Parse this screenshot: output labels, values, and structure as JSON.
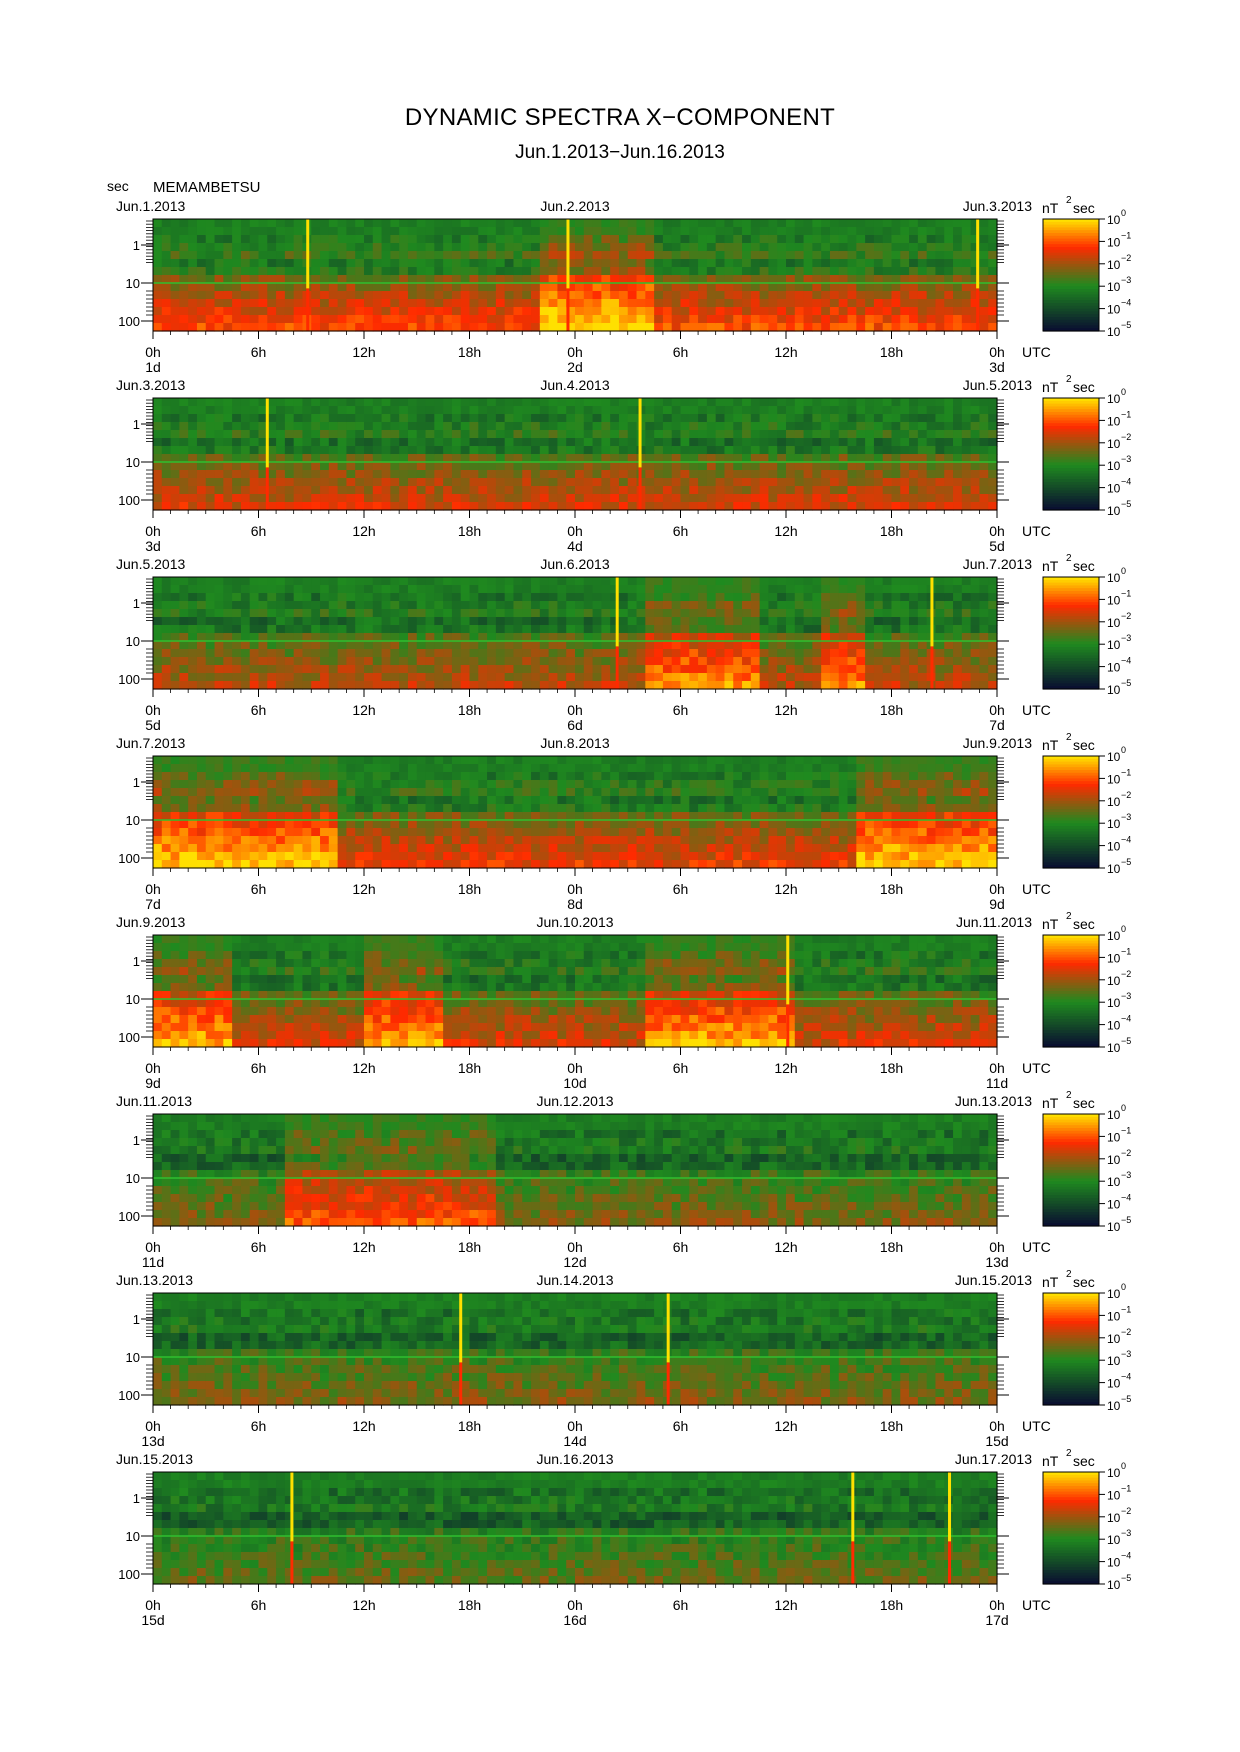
{
  "title": "DYNAMIC SPECTRA X−COMPONENT",
  "subtitle": "Jun.1.2013−Jun.16.2013",
  "y_unit": "sec",
  "station": "MEMAMBETSU",
  "time_unit": "UTC",
  "colorbar_unit": {
    "base": "nT",
    "sup": "2",
    "tail": "sec"
  },
  "colors": {
    "low": "#0a1030",
    "mid": "#1f8a1f",
    "high": "#ff2a00",
    "peak": "#ffe000"
  },
  "chart_data": {
    "type": "heatmap",
    "x_tick_labels": [
      "0h",
      "6h",
      "12h",
      "18h",
      "0h",
      "6h",
      "12h",
      "18h",
      "0h"
    ],
    "y_tick_labels": [
      "1",
      "10",
      "100"
    ],
    "y_scale": "log",
    "y_axis_label": "sec",
    "colorbar": {
      "label": "nT²sec",
      "scale": "log",
      "ticks": [
        "10^0",
        "10^-1",
        "10^-2",
        "10^-3",
        "10^-4",
        "10^-5"
      ],
      "ticks_display": [
        {
          "b": "10",
          "e": "0"
        },
        {
          "b": "10",
          "e": "−1"
        },
        {
          "b": "10",
          "e": "−2"
        },
        {
          "b": "10",
          "e": "−3"
        },
        {
          "b": "10",
          "e": "−4"
        },
        {
          "b": "10",
          "e": "−5"
        }
      ]
    },
    "panels": [
      {
        "date_left": "Jun.1.2013",
        "date_mid": "Jun.2.2013",
        "date_right": "Jun.3.2013",
        "day_left": "1d",
        "day_mid": "2d",
        "day_right": "3d",
        "spikes": [
          8.8,
          23.6,
          46.9
        ],
        "active": [
          [
            22,
            28
          ]
        ],
        "base": 0.55
      },
      {
        "date_left": "Jun.3.2013",
        "date_mid": "Jun.4.2013",
        "date_right": "Jun.5.2013",
        "day_left": "3d",
        "day_mid": "4d",
        "day_right": "5d",
        "spikes": [
          6.5,
          27.7
        ],
        "active": [],
        "base": 0.45
      },
      {
        "date_left": "Jun.5.2013",
        "date_mid": "Jun.6.2013",
        "date_right": "Jun.7.2013",
        "day_left": "5d",
        "day_mid": "6d",
        "day_right": "7d",
        "spikes": [
          26.4,
          44.3
        ],
        "active": [
          [
            28,
            34
          ],
          [
            38,
            40
          ]
        ],
        "base": 0.4
      },
      {
        "date_left": "Jun.7.2013",
        "date_mid": "Jun.8.2013",
        "date_right": "Jun.9.2013",
        "day_left": "7d",
        "day_mid": "8d",
        "day_right": "9d",
        "spikes": [],
        "active": [
          [
            0,
            10
          ],
          [
            40,
            48
          ]
        ],
        "base": 0.5
      },
      {
        "date_left": "Jun.9.2013",
        "date_mid": "Jun.10.2013",
        "date_right": "Jun.11.2013",
        "day_left": "9d",
        "day_mid": "10d",
        "day_right": "11d",
        "spikes": [
          36.1
        ],
        "active": [
          [
            0,
            4
          ],
          [
            12,
            16
          ],
          [
            28,
            36
          ]
        ],
        "base": 0.45
      },
      {
        "date_left": "Jun.11.2013",
        "date_mid": "Jun.12.2013",
        "date_right": "Jun.13.2013",
        "day_left": "11d",
        "day_mid": "12d",
        "day_right": "13d",
        "spikes": [],
        "active": [
          [
            7.5,
            19
          ]
        ],
        "base": 0.3
      },
      {
        "date_left": "Jun.13.2013",
        "date_mid": "Jun.14.2013",
        "date_right": "Jun.15.2013",
        "day_left": "13d",
        "day_mid": "14d",
        "day_right": "15d",
        "spikes": [
          17.5,
          29.3
        ],
        "active": [],
        "base": 0.3
      },
      {
        "date_left": "Jun.15.2013",
        "date_mid": "Jun.16.2013",
        "date_right": "Jun.17.2013",
        "day_left": "15d",
        "day_mid": "16d",
        "day_right": "17d",
        "spikes": [
          7.9,
          39.8,
          45.3
        ],
        "active": [],
        "base": 0.25
      }
    ]
  }
}
